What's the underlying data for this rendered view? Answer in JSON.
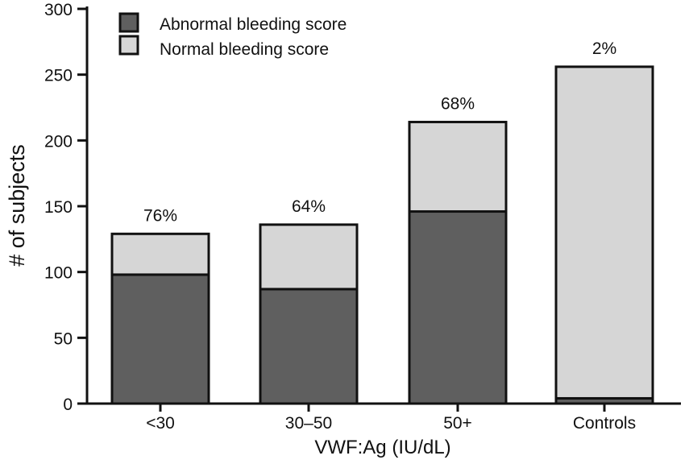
{
  "chart_data": {
    "type": "bar",
    "stacked": true,
    "title": "",
    "xlabel": "VWF:Ag (IU/dL)",
    "ylabel": "# of subjects",
    "categories": [
      "<30",
      "30–50",
      "50+",
      "Controls"
    ],
    "series": [
      {
        "name": "Abnormal bleeding score",
        "values": [
          98,
          87,
          146,
          4
        ],
        "color": "#5f5f5f"
      },
      {
        "name": "Normal bleeding score",
        "values": [
          31,
          49,
          68,
          252
        ],
        "color": "#d6d6d6"
      }
    ],
    "totals": [
      129,
      136,
      214,
      256
    ],
    "bar_labels": [
      "76%",
      "64%",
      "68%",
      "2%"
    ],
    "ylim": [
      0,
      300
    ],
    "yticks": [
      0,
      50,
      100,
      150,
      200,
      250,
      300
    ],
    "grid": false,
    "legend_position": "top-left"
  }
}
